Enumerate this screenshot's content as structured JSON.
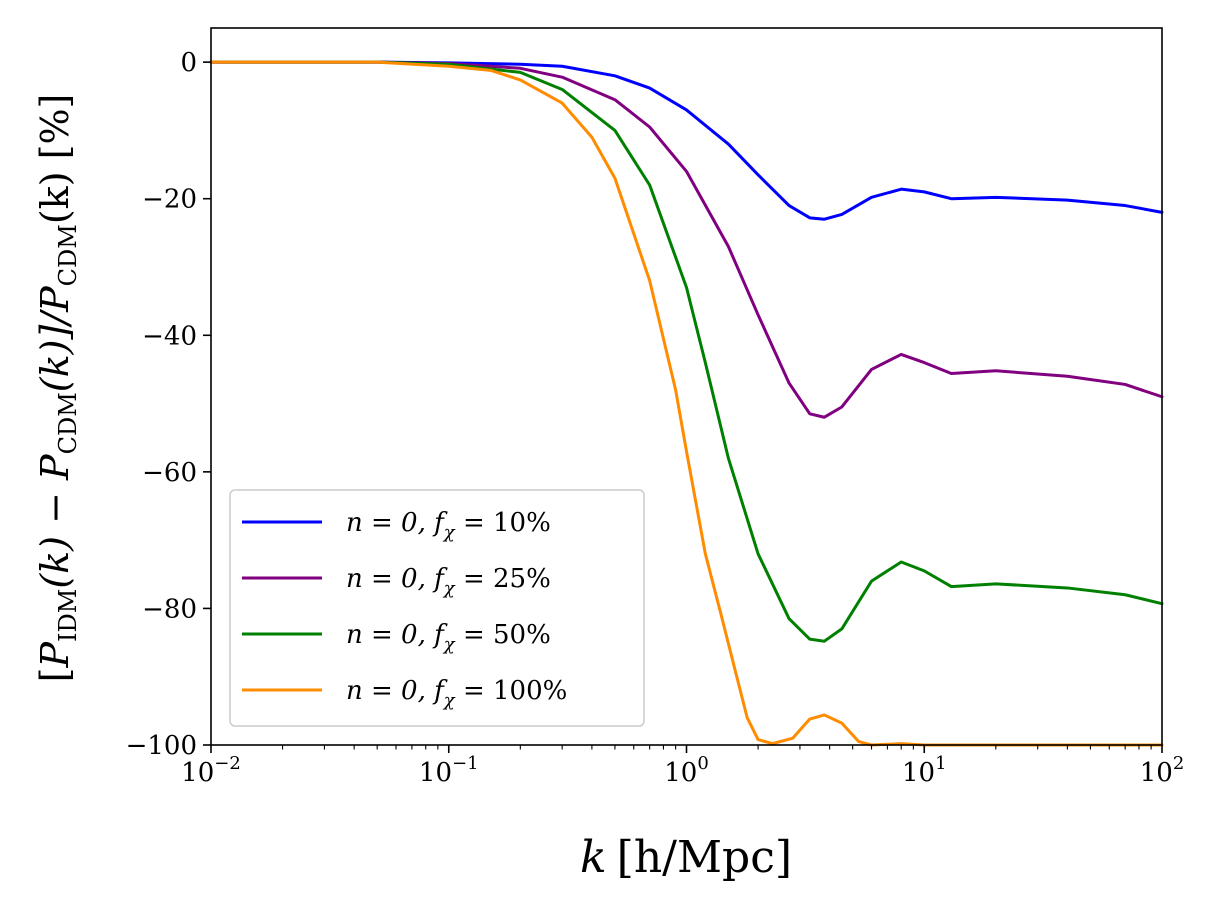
{
  "chart_data": {
    "type": "line",
    "title": "",
    "xlabel": "k [h/Mpc]",
    "ylabel": "[P_IDM(k) − P_CDM(k)]/P_CDM(k) [%]",
    "xlabel_parts": {
      "k": "k",
      "unit": "[h/Mpc]"
    },
    "ylabel_parts": {
      "open": "[",
      "p1": "P",
      "sub1": "IDM",
      "arg1": "(k) − ",
      "p2": "P",
      "sub2": "CDM",
      "arg2": "(k)]/",
      "p3": "P",
      "sub3": "CDM",
      "arg3": "(k) [%]"
    },
    "xscale": "log",
    "xlim": [
      0.01,
      100
    ],
    "ylim": [
      -100,
      5
    ],
    "x_ticks": [
      {
        "base": "10",
        "exp": "−2",
        "value": 0.01
      },
      {
        "base": "10",
        "exp": "−1",
        "value": 0.1
      },
      {
        "base": "10",
        "exp": "0",
        "value": 1
      },
      {
        "base": "10",
        "exp": "1",
        "value": 10
      },
      {
        "base": "10",
        "exp": "2",
        "value": 100
      }
    ],
    "y_ticks": [
      {
        "label": "0",
        "value": 0
      },
      {
        "label": "−20",
        "value": -20
      },
      {
        "label": "−40",
        "value": -40
      },
      {
        "label": "−60",
        "value": -60
      },
      {
        "label": "−80",
        "value": -80
      },
      {
        "label": "−100",
        "value": -100
      }
    ],
    "legend_position": "lower-left",
    "grid": false,
    "series": [
      {
        "name": "n = 0, fχ = 10%",
        "legend": {
          "n": "n = 0, ",
          "f": "f",
          "sub": "χ",
          "rest": " = 10%"
        },
        "color": "#0000ff",
        "points": [
          [
            0.01,
            0
          ],
          [
            0.05,
            0
          ],
          [
            0.1,
            -0.1
          ],
          [
            0.2,
            -0.3
          ],
          [
            0.3,
            -0.6
          ],
          [
            0.5,
            -2
          ],
          [
            0.7,
            -3.8
          ],
          [
            1.0,
            -7
          ],
          [
            1.5,
            -12
          ],
          [
            2.0,
            -16.5
          ],
          [
            2.7,
            -21
          ],
          [
            3.3,
            -22.8
          ],
          [
            3.8,
            -23
          ],
          [
            4.5,
            -22.3
          ],
          [
            6,
            -19.8
          ],
          [
            8,
            -18.6
          ],
          [
            10,
            -19
          ],
          [
            13,
            -20
          ],
          [
            20,
            -19.8
          ],
          [
            40,
            -20.2
          ],
          [
            70,
            -21
          ],
          [
            100,
            -22
          ]
        ]
      },
      {
        "name": "n = 0, fχ = 25%",
        "legend": {
          "n": "n = 0, ",
          "f": "f",
          "sub": "χ",
          "rest": " = 25%"
        },
        "color": "#800080",
        "points": [
          [
            0.01,
            0
          ],
          [
            0.05,
            0
          ],
          [
            0.1,
            -0.2
          ],
          [
            0.2,
            -0.9
          ],
          [
            0.3,
            -2.2
          ],
          [
            0.5,
            -5.5
          ],
          [
            0.7,
            -9.5
          ],
          [
            1.0,
            -16
          ],
          [
            1.5,
            -27
          ],
          [
            2.0,
            -37
          ],
          [
            2.7,
            -47
          ],
          [
            3.3,
            -51.5
          ],
          [
            3.8,
            -52
          ],
          [
            4.5,
            -50.5
          ],
          [
            6,
            -45
          ],
          [
            8,
            -42.8
          ],
          [
            10,
            -44
          ],
          [
            13,
            -45.6
          ],
          [
            20,
            -45.2
          ],
          [
            40,
            -46
          ],
          [
            70,
            -47.2
          ],
          [
            100,
            -49
          ]
        ]
      },
      {
        "name": "n = 0, fχ = 50%",
        "legend": {
          "n": "n = 0, ",
          "f": "f",
          "sub": "χ",
          "rest": " = 50%"
        },
        "color": "#008000",
        "points": [
          [
            0.01,
            0
          ],
          [
            0.05,
            0
          ],
          [
            0.1,
            -0.3
          ],
          [
            0.2,
            -1.5
          ],
          [
            0.3,
            -4
          ],
          [
            0.5,
            -10
          ],
          [
            0.7,
            -18
          ],
          [
            1.0,
            -33
          ],
          [
            1.2,
            -44
          ],
          [
            1.5,
            -58
          ],
          [
            2.0,
            -72
          ],
          [
            2.7,
            -81.5
          ],
          [
            3.3,
            -84.5
          ],
          [
            3.8,
            -84.8
          ],
          [
            4.5,
            -83
          ],
          [
            6,
            -76
          ],
          [
            8,
            -73.2
          ],
          [
            10,
            -74.5
          ],
          [
            13,
            -76.8
          ],
          [
            20,
            -76.4
          ],
          [
            40,
            -77
          ],
          [
            70,
            -78
          ],
          [
            100,
            -79.3
          ]
        ]
      },
      {
        "name": "n = 0, fχ = 100%",
        "legend": {
          "n": "n = 0, ",
          "f": "f",
          "sub": "χ",
          "rest": " = 100%"
        },
        "color": "#ff8c00",
        "points": [
          [
            0.01,
            0
          ],
          [
            0.05,
            0
          ],
          [
            0.1,
            -0.6
          ],
          [
            0.15,
            -1.2
          ],
          [
            0.2,
            -2.6
          ],
          [
            0.3,
            -6
          ],
          [
            0.4,
            -11
          ],
          [
            0.5,
            -17
          ],
          [
            0.7,
            -32
          ],
          [
            0.9,
            -48
          ],
          [
            1.0,
            -57
          ],
          [
            1.2,
            -72
          ],
          [
            1.4,
            -81
          ],
          [
            1.6,
            -89
          ],
          [
            1.8,
            -96
          ],
          [
            2.0,
            -99.2
          ],
          [
            2.3,
            -99.8
          ],
          [
            2.8,
            -99
          ],
          [
            3.3,
            -96.2
          ],
          [
            3.8,
            -95.6
          ],
          [
            4.5,
            -96.8
          ],
          [
            5.3,
            -99.5
          ],
          [
            6,
            -100
          ],
          [
            8,
            -99.8
          ],
          [
            10,
            -100
          ],
          [
            100,
            -100
          ]
        ]
      }
    ]
  }
}
